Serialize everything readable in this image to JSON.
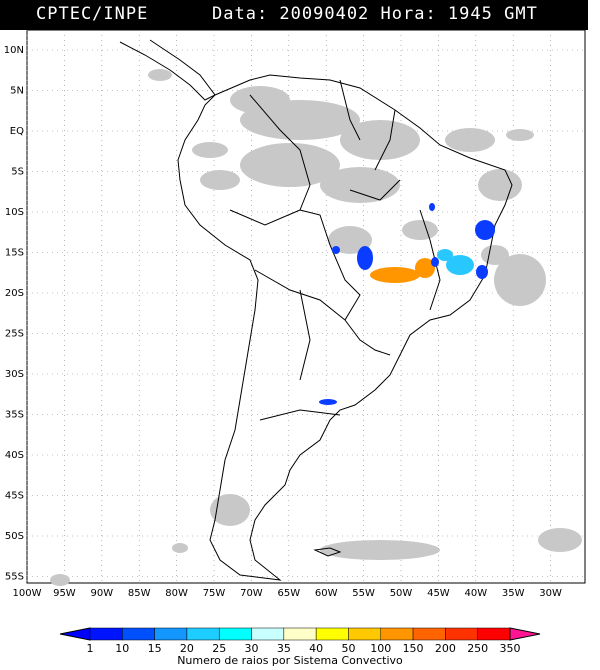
{
  "header": {
    "source": "CPTEC/INPE",
    "timestamp": "Data: 20090402 Hora: 1945 GMT"
  },
  "axes": {
    "lat_labels": [
      "10N",
      "5N",
      "EQ",
      "5S",
      "10S",
      "15S",
      "20S",
      "25S",
      "30S",
      "35S",
      "40S",
      "45S",
      "50S",
      "55S"
    ],
    "lon_labels": [
      "100W",
      "95W",
      "90W",
      "85W",
      "80W",
      "75W",
      "70W",
      "65W",
      "60W",
      "55W",
      "50W",
      "45W",
      "40W",
      "35W",
      "30W"
    ]
  },
  "colorbar": {
    "ticks": [
      "1",
      "10",
      "15",
      "20",
      "25",
      "30",
      "35",
      "40",
      "50",
      "100",
      "150",
      "200",
      "250",
      "350"
    ],
    "caption": "Numero de raios por Sistema Convectivo",
    "colors": [
      "#0014ff",
      "#0050ff",
      "#1496ff",
      "#1ecdff",
      "#00ffff",
      "#c8ffff",
      "#ffffc8",
      "#ffff00",
      "#ffc800",
      "#ff9600",
      "#ff6400",
      "#ff3200",
      "#ff0000"
    ]
  },
  "legend_colors": {
    "clouds": "#c8c8c8",
    "blue": "#0a3cff",
    "cyan": "#28c8ff",
    "orange": "#ff9600"
  }
}
